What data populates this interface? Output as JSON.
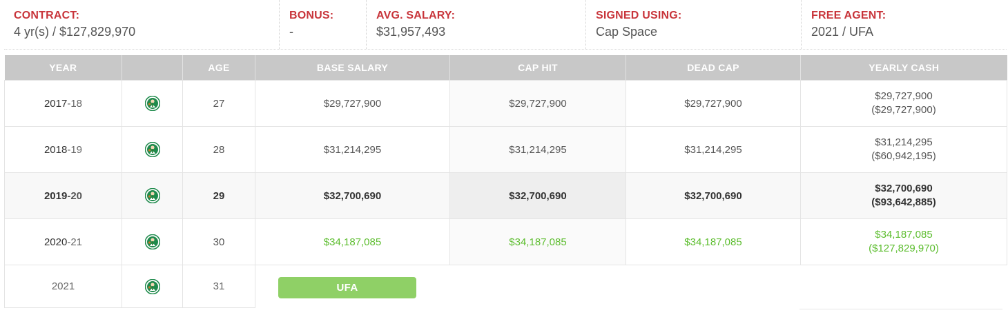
{
  "summary": {
    "contract_label": "CONTRACT:",
    "contract_value": "4 yr(s) / $127,829,970",
    "bonus_label": "BONUS:",
    "bonus_value": "-",
    "avg_label": "AVG. SALARY:",
    "avg_value": "$31,957,493",
    "signed_label": "SIGNED USING:",
    "signed_value": "Cap Space",
    "fa_label": "FREE AGENT:",
    "fa_value": "2021 / UFA"
  },
  "table": {
    "headers": [
      "YEAR",
      "",
      "AGE",
      "BASE SALARY",
      "CAP HIT",
      "DEAD CAP",
      "YEARLY CASH"
    ],
    "rows": [
      {
        "year_start": "2017",
        "year_end": "-18",
        "team_icon": "celtics-logo-icon",
        "age": "27",
        "base": "$29,727,900",
        "cap_hit": "$29,727,900",
        "dead_cap": "$29,727,900",
        "cash": "$29,727,900",
        "cash_total": "($29,727,900)"
      },
      {
        "year_start": "2018",
        "year_end": "-19",
        "team_icon": "celtics-logo-icon",
        "age": "28",
        "base": "$31,214,295",
        "cap_hit": "$31,214,295",
        "dead_cap": "$31,214,295",
        "cash": "$31,214,295",
        "cash_total": "($60,942,195)"
      },
      {
        "year_start": "2019",
        "year_end": "-20",
        "team_icon": "celtics-logo-icon",
        "age": "29",
        "base": "$32,700,690",
        "cap_hit": "$32,700,690",
        "dead_cap": "$32,700,690",
        "cash": "$32,700,690",
        "cash_total": "($93,642,885)"
      },
      {
        "year_start": "2020",
        "year_end": "-21",
        "team_icon": "celtics-logo-icon",
        "age": "30",
        "base": "$34,187,085",
        "cap_hit": "$34,187,085",
        "dead_cap": "$34,187,085",
        "cash": "$34,187,085",
        "cash_total": "($127,829,970)"
      }
    ],
    "fa_row": {
      "year": "2021",
      "team_icon": "celtics-logo-icon",
      "age": "31",
      "badge": "UFA"
    }
  },
  "colors": {
    "label_red": "#c8343a",
    "header_gray": "#c8c8c8",
    "future_green": "#5cbd2e",
    "badge_green": "#8fd066",
    "celtics_green": "#1f8a4c"
  }
}
